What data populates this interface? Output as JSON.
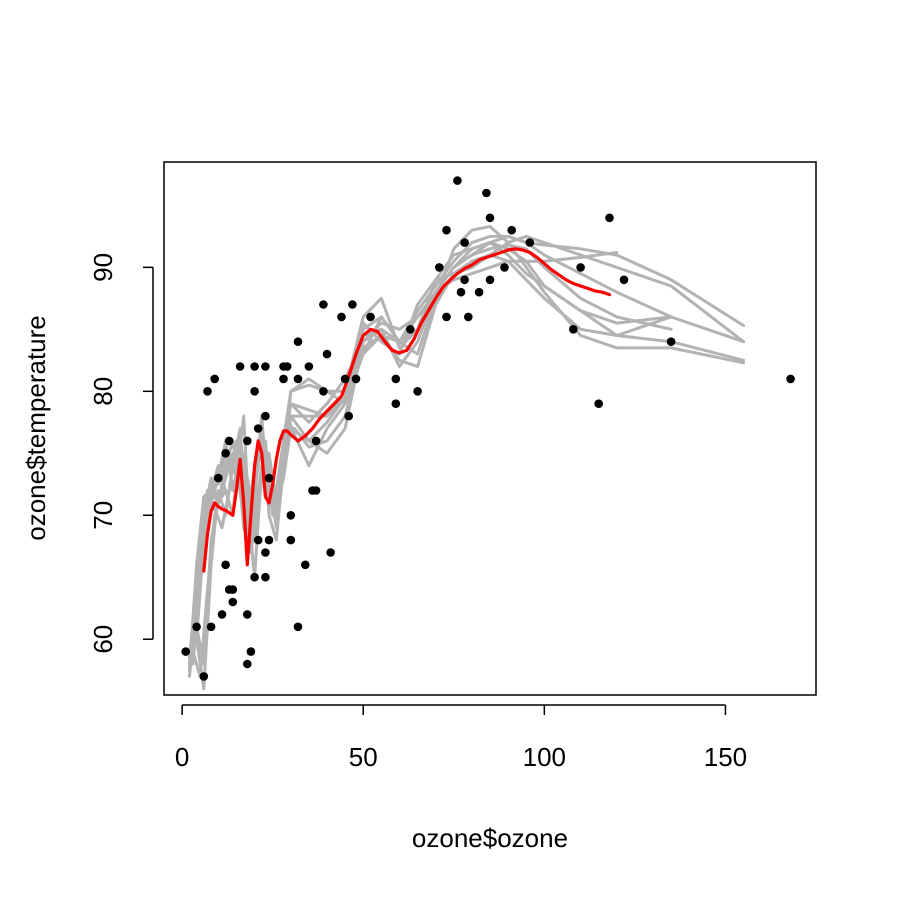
{
  "chart_data": {
    "type": "scatter",
    "title": "",
    "xlabel": "ozone$ozone",
    "ylabel": "ozone$temperature",
    "xlim": [
      -5,
      175
    ],
    "ylim": [
      55.5,
      98.5
    ],
    "xticks": [
      0,
      50,
      100,
      150
    ],
    "yticks": [
      60,
      70,
      80,
      90
    ],
    "xtick_labels": [
      "0",
      "50",
      "100",
      "150"
    ],
    "ytick_labels": [
      "60",
      "70",
      "80",
      "90"
    ],
    "grid": false,
    "legend": "none",
    "colors": {
      "points": "#000000",
      "fit": "#ff0000",
      "bootstrap": "#b3b3b3",
      "frame": "#000000"
    },
    "points": [
      [
        1,
        59
      ],
      [
        4,
        61
      ],
      [
        6,
        57
      ],
      [
        7,
        80
      ],
      [
        8,
        61
      ],
      [
        9,
        81
      ],
      [
        10,
        73
      ],
      [
        11,
        62
      ],
      [
        12,
        66
      ],
      [
        12,
        75
      ],
      [
        13,
        76
      ],
      [
        13,
        64
      ],
      [
        14,
        64
      ],
      [
        14,
        63
      ],
      [
        16,
        82
      ],
      [
        18,
        76
      ],
      [
        18,
        62
      ],
      [
        18,
        58
      ],
      [
        19,
        59
      ],
      [
        20,
        82
      ],
      [
        20,
        80
      ],
      [
        20,
        65
      ],
      [
        21,
        77
      ],
      [
        21,
        68
      ],
      [
        23,
        82
      ],
      [
        23,
        78
      ],
      [
        23,
        67
      ],
      [
        23,
        65
      ],
      [
        24,
        73
      ],
      [
        24,
        68
      ],
      [
        28,
        82
      ],
      [
        28,
        81
      ],
      [
        29,
        82
      ],
      [
        30,
        70
      ],
      [
        30,
        68
      ],
      [
        32,
        84
      ],
      [
        32,
        81
      ],
      [
        32,
        61
      ],
      [
        34,
        66
      ],
      [
        35,
        82
      ],
      [
        36,
        72
      ],
      [
        37,
        72
      ],
      [
        37,
        76
      ],
      [
        39,
        87
      ],
      [
        39,
        80
      ],
      [
        40,
        83
      ],
      [
        41,
        67
      ],
      [
        44,
        86
      ],
      [
        45,
        81
      ],
      [
        46,
        78
      ],
      [
        47,
        87
      ],
      [
        48,
        81
      ],
      [
        52,
        86
      ],
      [
        59,
        81
      ],
      [
        59,
        79
      ],
      [
        63,
        85
      ],
      [
        65,
        80
      ],
      [
        71,
        90
      ],
      [
        73,
        93
      ],
      [
        73,
        86
      ],
      [
        76,
        97
      ],
      [
        77,
        88
      ],
      [
        78,
        92
      ],
      [
        78,
        89
      ],
      [
        79,
        86
      ],
      [
        82,
        88
      ],
      [
        84,
        96
      ],
      [
        85,
        94
      ],
      [
        85,
        89
      ],
      [
        89,
        90
      ],
      [
        91,
        93
      ],
      [
        96,
        92
      ],
      [
        108,
        85
      ],
      [
        110,
        90
      ],
      [
        115,
        79
      ],
      [
        118,
        94
      ],
      [
        122,
        89
      ],
      [
        135,
        84
      ],
      [
        168,
        81
      ]
    ],
    "fit_series": {
      "x": [
        6,
        7,
        8,
        9,
        10,
        11,
        12,
        13,
        14,
        15,
        16,
        17,
        18,
        19,
        20,
        21,
        22,
        23,
        24,
        25,
        26,
        27,
        28,
        29,
        30,
        32,
        34,
        36,
        38,
        40,
        42,
        44,
        46,
        48,
        50,
        52,
        54,
        56,
        58,
        60,
        62,
        64,
        66,
        68,
        70,
        72,
        74,
        76,
        78,
        80,
        82,
        84,
        86,
        88,
        90,
        92,
        94,
        96,
        98,
        100,
        102,
        104,
        106,
        108,
        110,
        112,
        114,
        116,
        118
      ],
      "y": [
        65.5,
        68.5,
        70.3,
        71,
        70.7,
        70.5,
        70.4,
        70.2,
        70,
        72,
        74.5,
        71,
        66,
        70,
        74,
        76,
        75,
        71.5,
        71,
        72.5,
        74.5,
        76,
        76.8,
        76.8,
        76.5,
        76.0,
        76.4,
        77.0,
        77.8,
        78.4,
        79.0,
        79.6,
        81.2,
        83.0,
        84.5,
        85.0,
        84.8,
        84.0,
        83.3,
        83.1,
        83.3,
        84.2,
        85.5,
        86.5,
        87.5,
        88.4,
        89.0,
        89.5,
        89.9,
        90.2,
        90.6,
        90.8,
        91.0,
        91.2,
        91.4,
        91.5,
        91.4,
        91.2,
        90.8,
        90.3,
        89.8,
        89.4,
        89.0,
        88.7,
        88.5,
        88.3,
        88.1,
        88.0,
        87.8
      ]
    },
    "bootstrap_series": [
      {
        "x": [
          2,
          4,
          6,
          8,
          10,
          12,
          14,
          16,
          18,
          20,
          22,
          24,
          26,
          28,
          30,
          35,
          40,
          45,
          50,
          55,
          60,
          65,
          70,
          75,
          80,
          85,
          90,
          95,
          100,
          110,
          120,
          135,
          155
        ],
        "y": [
          57.5,
          66,
          71.5,
          72,
          71,
          74,
          76,
          72,
          67,
          73,
          77,
          71,
          70,
          75,
          79,
          78.5,
          78,
          79.5,
          85,
          86,
          84,
          86.5,
          88.5,
          90.5,
          92,
          92.5,
          92.5,
          92,
          91.8,
          91.5,
          91,
          89,
          85.3
        ]
      },
      {
        "x": [
          2,
          4,
          6,
          8,
          10,
          12,
          14,
          16,
          18,
          20,
          22,
          24,
          26,
          28,
          30,
          35,
          40,
          45,
          50,
          55,
          60,
          65,
          70,
          75,
          80,
          85,
          90,
          95,
          100,
          110,
          120,
          135,
          155
        ],
        "y": [
          58.5,
          64,
          70.5,
          72.5,
          72.5,
          75,
          74,
          77,
          68,
          72,
          78,
          70,
          68,
          74,
          80,
          81,
          80,
          80,
          86,
          87.5,
          83.5,
          85,
          89,
          91,
          91.5,
          92,
          91.5,
          90.5,
          88.5,
          86.5,
          84.5,
          84,
          82.5
        ]
      },
      {
        "x": [
          2,
          4,
          6,
          8,
          10,
          12,
          14,
          16,
          18,
          20,
          22,
          24,
          26,
          28,
          30,
          35,
          40,
          45,
          50,
          55,
          60,
          65,
          70,
          75,
          80,
          85,
          90,
          95,
          100,
          110,
          120,
          135,
          155
        ],
        "y": [
          58,
          60,
          68,
          71,
          73,
          76,
          72,
          75,
          70,
          72,
          76,
          72,
          72,
          76,
          78,
          76,
          75,
          77,
          84,
          85.5,
          85,
          86,
          88,
          90,
          91,
          92,
          92.5,
          92,
          91,
          89.5,
          88,
          86,
          84
        ]
      },
      {
        "x": [
          3,
          5,
          7,
          9,
          11,
          13,
          15,
          17,
          19,
          21,
          23,
          25,
          27,
          29,
          31,
          35,
          40,
          45,
          50,
          55,
          60,
          65,
          70,
          75,
          80,
          85,
          90,
          95,
          100,
          110,
          120,
          135
        ],
        "y": [
          59,
          57,
          64,
          70,
          72,
          75,
          73,
          78,
          67,
          71,
          75,
          70,
          71,
          77,
          77,
          75.5,
          76,
          78,
          83.5,
          84.5,
          82.5,
          82,
          87,
          89.5,
          90.5,
          91,
          90.5,
          89,
          87.5,
          85,
          84.5,
          86
        ]
      },
      {
        "x": [
          4,
          6,
          8,
          10,
          12,
          14,
          16,
          18,
          20,
          22,
          24,
          26,
          28,
          30,
          35,
          40,
          45,
          50,
          55,
          60,
          65,
          70,
          75,
          80,
          85,
          90,
          95,
          100,
          110,
          120,
          135
        ],
        "y": [
          60,
          56,
          66,
          72,
          70,
          74,
          76,
          71,
          65,
          74,
          73,
          69,
          75,
          79,
          77.5,
          79,
          81,
          84,
          85,
          84,
          86,
          88,
          90,
          91,
          91.5,
          91.8,
          91.5,
          90,
          87.5,
          86,
          85
        ]
      },
      {
        "x": [
          2,
          4,
          6,
          8,
          10,
          12,
          14,
          16,
          18,
          20,
          22,
          24,
          26,
          28,
          30,
          35,
          40,
          45,
          50,
          55,
          60,
          65,
          70,
          75,
          80,
          85,
          90,
          95,
          100,
          110,
          120,
          135,
          155
        ],
        "y": [
          57,
          62,
          70,
          73,
          71,
          73,
          75,
          73,
          69,
          74,
          77,
          73,
          70,
          76,
          80,
          80.5,
          80,
          79,
          83,
          86,
          84,
          83,
          87.5,
          91.5,
          93,
          93.3,
          92,
          90,
          88,
          84.5,
          83.5,
          83.5,
          82.3
        ]
      },
      {
        "x": [
          3,
          5,
          7,
          9,
          11,
          13,
          15,
          17,
          19,
          21,
          23,
          25,
          27,
          29,
          31,
          35,
          40,
          45,
          50,
          55,
          60,
          65,
          70,
          75,
          80,
          85,
          90,
          95,
          100,
          110,
          120
        ],
        "y": [
          58,
          66,
          72,
          70.5,
          69,
          72,
          76,
          69,
          67,
          75,
          76,
          70,
          74,
          78,
          76.5,
          74,
          77,
          79,
          84.5,
          85,
          82,
          84,
          88,
          89,
          89.5,
          90,
          90.5,
          90.5,
          90.5,
          90.8,
          91.2
        ]
      },
      {
        "x": [
          2,
          4,
          6,
          8,
          10,
          12,
          14,
          16,
          18,
          20,
          22,
          24,
          26,
          28,
          30,
          35,
          40,
          45,
          50,
          55,
          60,
          65,
          70,
          75,
          80,
          85,
          90,
          95,
          100,
          110,
          120,
          135,
          155
        ],
        "y": [
          58,
          63,
          69,
          72,
          74,
          72,
          70,
          76,
          73,
          70,
          74,
          74,
          71,
          73,
          78,
          78,
          78,
          80,
          85.5,
          84,
          83,
          87,
          89,
          89.5,
          90,
          91,
          92,
          92.5,
          92,
          91,
          90,
          88.5,
          84
        ]
      },
      {
        "x": [
          4,
          6,
          8,
          10,
          12,
          14,
          16,
          18,
          20,
          22,
          24,
          26,
          28,
          30,
          35,
          40,
          45,
          50,
          55,
          60,
          65,
          70,
          75,
          80,
          85,
          90,
          95,
          100,
          110,
          120,
          135
        ],
        "y": [
          61,
          58,
          68,
          71,
          72,
          70,
          74,
          72,
          68,
          73,
          75,
          71,
          73,
          77,
          76,
          77.5,
          79.5,
          83,
          84.5,
          84,
          85,
          88,
          90,
          91.5,
          92,
          91,
          89.5,
          88.5,
          86.5,
          85.5,
          86
        ]
      }
    ]
  }
}
